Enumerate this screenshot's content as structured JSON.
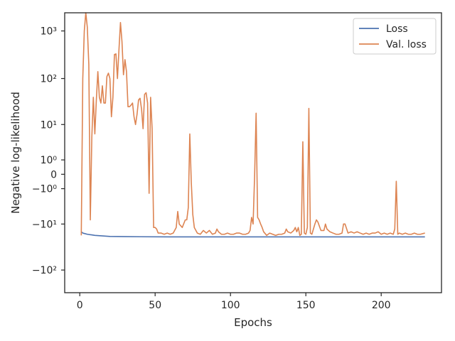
{
  "chart_data": {
    "type": "line",
    "title": "",
    "xlabel": "Epochs",
    "ylabel": "Negative log-likelihood",
    "xlim": [
      -10,
      240
    ],
    "x_ticks": [
      0,
      50,
      100,
      150,
      200
    ],
    "x_tick_labels": [
      "0",
      "50",
      "100",
      "150",
      "200"
    ],
    "yscale": "symlog",
    "ylim": [
      -300,
      2400
    ],
    "y_ticks": [
      1000,
      100,
      10,
      1,
      0,
      -1,
      -10,
      -100
    ],
    "y_tick_labels": [
      "10³",
      "10²",
      "10¹",
      "10⁰",
      "0",
      "−10⁰",
      "−10¹",
      "−10²"
    ],
    "grid": false,
    "legend_position": "top-right",
    "colors": {
      "loss": "#4c72b0",
      "val_loss": "#dd8452",
      "axes": "#262626"
    },
    "series": [
      {
        "name": "Loss",
        "x": [
          1,
          2,
          5,
          10,
          15,
          20,
          30,
          40,
          60,
          80,
          100,
          150,
          200,
          229
        ],
        "y": [
          -15,
          -16,
          -17,
          -18,
          -18.5,
          -19,
          -19.2,
          -19.3,
          -19.4,
          -19.4,
          -19.4,
          -19.4,
          -19.4,
          -19.4
        ]
      },
      {
        "name": "Val. loss",
        "x": [
          1,
          2,
          3,
          4,
          5,
          6,
          7,
          8,
          9,
          10,
          11,
          12,
          13,
          14,
          15,
          16,
          17,
          18,
          19,
          20,
          21,
          22,
          23,
          24,
          25,
          26,
          27,
          28,
          29,
          30,
          31,
          32,
          33,
          34,
          35,
          36,
          37,
          38,
          39,
          40,
          41,
          42,
          43,
          44,
          45,
          46,
          47,
          48,
          49,
          50,
          51,
          52,
          54,
          56,
          58,
          60,
          62,
          64,
          65,
          66,
          68,
          70,
          71,
          72,
          73,
          74,
          75,
          76,
          78,
          80,
          82,
          84,
          86,
          88,
          90,
          91,
          92,
          94,
          96,
          98,
          100,
          102,
          104,
          106,
          108,
          110,
          112,
          113,
          114,
          115,
          116,
          117,
          118,
          119,
          120,
          121,
          122,
          124,
          125,
          126,
          128,
          130,
          132,
          134,
          136,
          137,
          138,
          140,
          142,
          143,
          144,
          145,
          146,
          147,
          148,
          149,
          150,
          151,
          152,
          153,
          154,
          156,
          157,
          158,
          160,
          162,
          163,
          164,
          166,
          168,
          170,
          172,
          174,
          175,
          176,
          178,
          180,
          182,
          184,
          186,
          188,
          190,
          192,
          194,
          196,
          198,
          200,
          202,
          204,
          206,
          208,
          209,
          210,
          211,
          212,
          214,
          216,
          218,
          220,
          222,
          224,
          226,
          229
        ],
        "y": [
          -18,
          100,
          1000,
          2400,
          1200,
          200,
          -8,
          5,
          40,
          6,
          35,
          140,
          40,
          30,
          70,
          30,
          30,
          110,
          130,
          100,
          15,
          40,
          320,
          330,
          100,
          400,
          1500,
          600,
          120,
          250,
          140,
          25,
          25,
          27,
          30,
          15,
          10,
          17,
          35,
          38,
          22,
          8,
          46,
          50,
          30,
          -1.5,
          40,
          8,
          -12,
          -12,
          -13,
          -16,
          -16,
          -17,
          -16,
          -17,
          -16,
          -12,
          -5,
          -10,
          -12,
          -8,
          -8,
          -4,
          6,
          -0.5,
          -6,
          -12,
          -16,
          -17,
          -14,
          -16,
          -14,
          -17,
          -16,
          -13,
          -15,
          -17,
          -17,
          -16,
          -17,
          -17,
          -16,
          -16,
          -17,
          -17,
          -16,
          -14,
          -7,
          -10,
          -0.1,
          18,
          -7,
          -8,
          -10,
          -12,
          -15,
          -18,
          -17,
          -16,
          -17,
          -18,
          -17,
          -17,
          -16,
          -13,
          -15,
          -16,
          -14,
          -12,
          -15,
          -12,
          -18,
          -17,
          3.8,
          -16,
          -17,
          -12,
          23,
          -16,
          -17,
          -10,
          -8,
          -9,
          -14,
          -14,
          -10,
          -13,
          -15,
          -16,
          -17,
          -17,
          -16,
          -10,
          -10,
          -16,
          -15,
          -16,
          -15,
          -16,
          -17,
          -16,
          -17,
          -16,
          -16,
          -15,
          -17,
          -16,
          -17,
          -16,
          -17,
          -13,
          -0.4,
          -17,
          -16,
          -17,
          -16,
          -17,
          -17,
          -16,
          -17,
          -17,
          -16
        ]
      }
    ]
  }
}
